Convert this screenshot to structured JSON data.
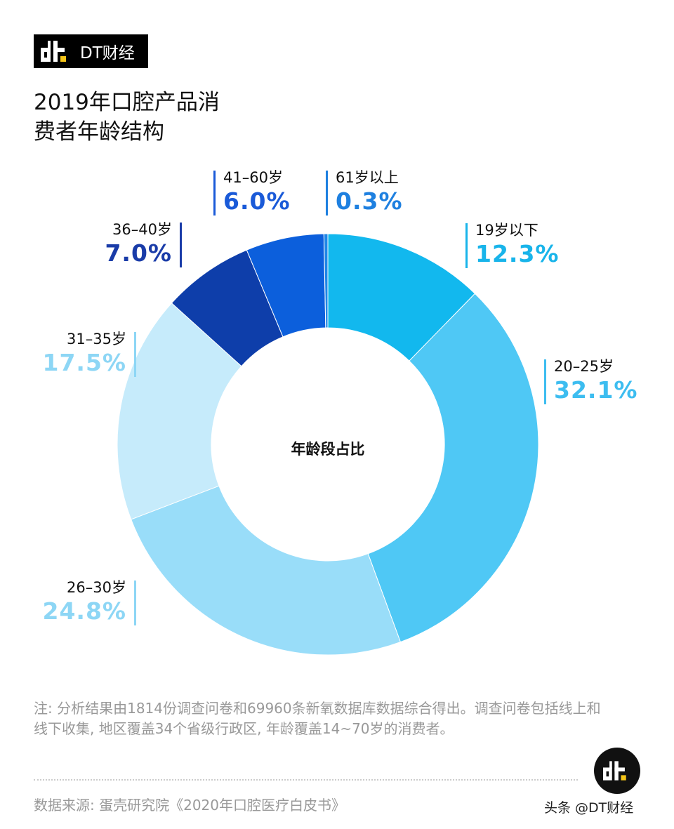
{
  "brand": {
    "name": "DT财经",
    "accent": "#f5c518"
  },
  "chart_data": {
    "type": "pie",
    "donut": true,
    "title": "2019年口腔产品消费者年龄结构",
    "center_label": "年龄段占比",
    "categories": [
      "19岁以下",
      "20–25岁",
      "26–30岁",
      "31–35岁",
      "36–40岁",
      "41–60岁",
      "61岁以上"
    ],
    "values": [
      12.3,
      32.1,
      24.8,
      17.5,
      7.0,
      6.0,
      0.3
    ],
    "value_labels": [
      "12.3%",
      "32.1%",
      "24.8%",
      "17.5%",
      "7.0%",
      "6.0%",
      "0.3%"
    ],
    "colors": [
      "#12b8ee",
      "#4fc8f5",
      "#99ddf9",
      "#c6ebfb",
      "#0e3eaa",
      "#0c5fdc",
      "#1f86e6"
    ],
    "label_colors": [
      "#18b4ea",
      "#3dbdf0",
      "#8dd6f5",
      "#8dd6f5",
      "#1a3ca8",
      "#1a5ad8",
      "#1e80e0"
    ]
  },
  "footer": {
    "note": "注: 分析结果由1814份调查问卷和69960条新氧数据库数据综合得出。调查问卷包括线上和线下收集, 地区覆盖34个省级行政区, 年龄覆盖14~70岁的消费者。",
    "source": "数据来源: 蛋壳研究院《2020年口腔医疗白皮书》",
    "watermark": "头条 @DT财经"
  }
}
